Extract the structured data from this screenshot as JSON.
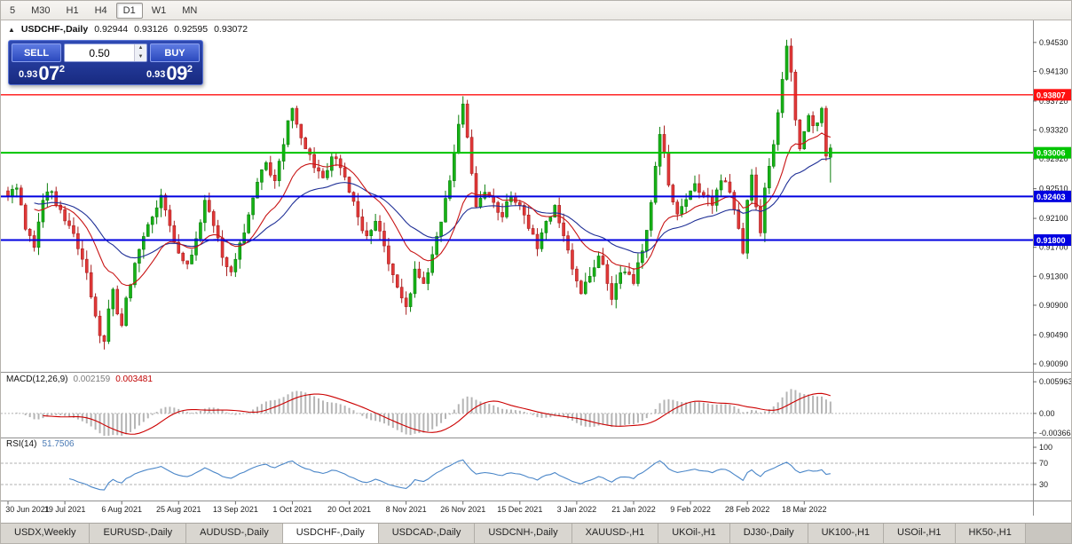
{
  "colors": {
    "up": "#0b7e0b",
    "up_fill": "#16b216",
    "down": "#a82020",
    "down_fill": "#e23838",
    "ma_fast": "#c81414",
    "ma_slow": "#1f2f96",
    "macd_hist": "#b5b5b5",
    "macd_signal": "#cc0000",
    "rsi_line": "#4a86c8",
    "axis_text": "#1a1a1a",
    "divider": "#909090"
  },
  "toolbar": {
    "timeframes": [
      {
        "label": "5",
        "active": false
      },
      {
        "label": "M30",
        "active": false
      },
      {
        "label": "H1",
        "active": false
      },
      {
        "label": "H4",
        "active": false
      },
      {
        "label": "D1",
        "active": true
      },
      {
        "label": "W1",
        "active": false
      },
      {
        "label": "MN",
        "active": false
      }
    ]
  },
  "chart_header": {
    "toggle_icon": "▲",
    "symbol": "USDCHF-,Daily",
    "open": "0.92944",
    "high": "0.93126",
    "low": "0.92595",
    "close": "0.93072"
  },
  "trade_panel": {
    "sell_label": "SELL",
    "buy_label": "BUY",
    "volume": "0.50",
    "spinner_up_icon": "▲",
    "spinner_down_icon": "▼",
    "sell_price": {
      "base": "0.93",
      "big": "07",
      "sup": "2"
    },
    "buy_price": {
      "base": "0.93",
      "big": "09",
      "sup": "2"
    }
  },
  "tabs": [
    {
      "label": "USDX,Weekly",
      "active": false
    },
    {
      "label": "EURUSD-,Daily",
      "active": false
    },
    {
      "label": "AUDUSD-,Daily",
      "active": false
    },
    {
      "label": "USDCHF-,Daily",
      "active": true
    },
    {
      "label": "USDCAD-,Daily",
      "active": false
    },
    {
      "label": "USDCNH-,Daily",
      "active": false
    },
    {
      "label": "XAUUSD-,H1",
      "active": false
    },
    {
      "label": "UKOil-,H1",
      "active": false
    },
    {
      "label": "DJ30-,Daily",
      "active": false
    },
    {
      "label": "UK100-,H1",
      "active": false
    },
    {
      "label": "USOil-,H1",
      "active": false
    },
    {
      "label": "HK50-,H1",
      "active": false
    }
  ],
  "chart_data": {
    "type": "candlestick",
    "symbol": "USDCHF-,Daily",
    "ohlc_current": {
      "open": 0.92944,
      "high": 0.93126,
      "low": 0.92595,
      "close": 0.93072
    },
    "y_range": [
      0.8998,
      0.9481
    ],
    "y_ticks": [
      {
        "v": 0.9453,
        "label": "0.94530"
      },
      {
        "v": 0.9413,
        "label": "0.94130"
      },
      {
        "v": 0.9372,
        "label": "0.93720"
      },
      {
        "v": 0.9332,
        "label": "0.93320"
      },
      {
        "v": 0.9292,
        "label": "0.92920"
      },
      {
        "v": 0.9251,
        "label": "0.92510"
      },
      {
        "v": 0.921,
        "label": "0.92100"
      },
      {
        "v": 0.917,
        "label": "0.91700"
      },
      {
        "v": 0.913,
        "label": "0.91300"
      },
      {
        "v": 0.909,
        "label": "0.90900"
      },
      {
        "v": 0.9049,
        "label": "0.90490"
      },
      {
        "v": 0.9009,
        "label": "0.90090"
      }
    ],
    "hlines": [
      {
        "value": 0.93807,
        "label": "0.93807",
        "color": "#ff1010",
        "width": 1.4
      },
      {
        "value": 0.93006,
        "label": "0.93006",
        "color": "#00c400",
        "width": 2
      },
      {
        "value": 0.92403,
        "label": "0.92403",
        "color": "#0000e0",
        "width": 2
      },
      {
        "value": 0.918,
        "label": "0.91800",
        "color": "#0000e0",
        "width": 2
      }
    ],
    "x_labels": [
      "30 Jun 2021",
      "19 Jul 2021",
      "6 Aug 2021",
      "25 Aug 2021",
      "13 Sep 2021",
      "1 Oct 2021",
      "20 Oct 2021",
      "8 Nov 2021",
      "26 Nov 2021",
      "15 Dec 2021",
      "3 Jan 2022",
      "21 Jan 2022",
      "9 Feb 2022",
      "28 Feb 2022",
      "18 Mar 2022"
    ],
    "label_every": 13,
    "candle_count": 189,
    "last_candle": {
      "open": 0.92944,
      "high": 0.93126,
      "low": 0.92595,
      "close": 0.93072
    },
    "close_anchors": [
      [
        0,
        0.924
      ],
      [
        2,
        0.9252
      ],
      [
        4,
        0.9195
      ],
      [
        6,
        0.917
      ],
      [
        8,
        0.9235
      ],
      [
        10,
        0.9247
      ],
      [
        12,
        0.9222
      ],
      [
        14,
        0.92
      ],
      [
        16,
        0.9168
      ],
      [
        18,
        0.9135
      ],
      [
        20,
        0.9075
      ],
      [
        21,
        0.9048
      ],
      [
        22,
        0.904
      ],
      [
        23,
        0.9085
      ],
      [
        24,
        0.9112
      ],
      [
        25,
        0.9078
      ],
      [
        26,
        0.9062
      ],
      [
        27,
        0.91
      ],
      [
        29,
        0.9148
      ],
      [
        31,
        0.9185
      ],
      [
        33,
        0.9212
      ],
      [
        35,
        0.9242
      ],
      [
        37,
        0.92
      ],
      [
        39,
        0.9162
      ],
      [
        41,
        0.9147
      ],
      [
        43,
        0.9182
      ],
      [
        45,
        0.9235
      ],
      [
        47,
        0.92
      ],
      [
        49,
        0.9156
      ],
      [
        51,
        0.9136
      ],
      [
        53,
        0.9176
      ],
      [
        55,
        0.9215
      ],
      [
        57,
        0.926
      ],
      [
        59,
        0.9287
      ],
      [
        61,
        0.9262
      ],
      [
        63,
        0.9312
      ],
      [
        64,
        0.9345
      ],
      [
        65,
        0.9362
      ],
      [
        66,
        0.934
      ],
      [
        68,
        0.9306
      ],
      [
        70,
        0.928
      ],
      [
        72,
        0.9266
      ],
      [
        74,
        0.9295
      ],
      [
        76,
        0.928
      ],
      [
        78,
        0.9246
      ],
      [
        80,
        0.9212
      ],
      [
        82,
        0.9186
      ],
      [
        84,
        0.9206
      ],
      [
        86,
        0.9172
      ],
      [
        88,
        0.9132
      ],
      [
        90,
        0.91
      ],
      [
        91,
        0.9088
      ],
      [
        92,
        0.9106
      ],
      [
        93,
        0.914
      ],
      [
        95,
        0.912
      ],
      [
        97,
        0.916
      ],
      [
        99,
        0.9205
      ],
      [
        101,
        0.9262
      ],
      [
        102,
        0.93
      ],
      [
        103,
        0.934
      ],
      [
        104,
        0.9368
      ],
      [
        105,
        0.9322
      ],
      [
        106,
        0.9272
      ],
      [
        107,
        0.9226
      ],
      [
        109,
        0.9246
      ],
      [
        111,
        0.9232
      ],
      [
        113,
        0.9212
      ],
      [
        115,
        0.924
      ],
      [
        117,
        0.9228
      ],
      [
        119,
        0.9196
      ],
      [
        121,
        0.9168
      ],
      [
        123,
        0.9206
      ],
      [
        125,
        0.9228
      ],
      [
        127,
        0.9186
      ],
      [
        129,
        0.914
      ],
      [
        131,
        0.9106
      ],
      [
        133,
        0.913
      ],
      [
        135,
        0.9158
      ],
      [
        137,
        0.912
      ],
      [
        138,
        0.9098
      ],
      [
        139,
        0.912
      ],
      [
        141,
        0.9136
      ],
      [
        143,
        0.912
      ],
      [
        145,
        0.9165
      ],
      [
        147,
        0.9232
      ],
      [
        148,
        0.9282
      ],
      [
        149,
        0.9326
      ],
      [
        150,
        0.93
      ],
      [
        151,
        0.9256
      ],
      [
        153,
        0.9216
      ],
      [
        155,
        0.9236
      ],
      [
        157,
        0.9258
      ],
      [
        159,
        0.9242
      ],
      [
        161,
        0.9228
      ],
      [
        163,
        0.9262
      ],
      [
        165,
        0.9246
      ],
      [
        166,
        0.9222
      ],
      [
        167,
        0.9196
      ],
      [
        168,
        0.9162
      ],
      [
        169,
        0.9235
      ],
      [
        170,
        0.927
      ],
      [
        171,
        0.9226
      ],
      [
        172,
        0.919
      ],
      [
        173,
        0.9252
      ],
      [
        174,
        0.9282
      ],
      [
        175,
        0.9312
      ],
      [
        176,
        0.9356
      ],
      [
        177,
        0.9402
      ],
      [
        178,
        0.9448
      ],
      [
        179,
        0.9412
      ],
      [
        180,
        0.9346
      ],
      [
        181,
        0.9306
      ],
      [
        182,
        0.933
      ],
      [
        183,
        0.9352
      ],
      [
        184,
        0.9338
      ],
      [
        185,
        0.9342
      ],
      [
        186,
        0.9362
      ],
      [
        187,
        0.9296
      ],
      [
        188,
        0.93072
      ]
    ],
    "macd": {
      "title": "MACD(12,26,9)",
      "value_main": "0.002159",
      "value_signal": "0.003481",
      "fast": 12,
      "slow": 26,
      "signal": 9,
      "range": [
        -0.0042,
        0.0075
      ],
      "ticks": [
        {
          "v": 0.005963,
          "label": "0.005963"
        },
        {
          "v": 0,
          "label": "0.00"
        },
        {
          "v": -0.003664,
          "label": "-0.003664"
        }
      ]
    },
    "rsi": {
      "title": "RSI(14)",
      "value": "51.7506",
      "period": 14,
      "levels": [
        70,
        30
      ],
      "ticks": [
        {
          "v": 100,
          "label": "100"
        },
        {
          "v": 70,
          "label": "70"
        },
        {
          "v": 30,
          "label": "30"
        }
      ]
    }
  }
}
